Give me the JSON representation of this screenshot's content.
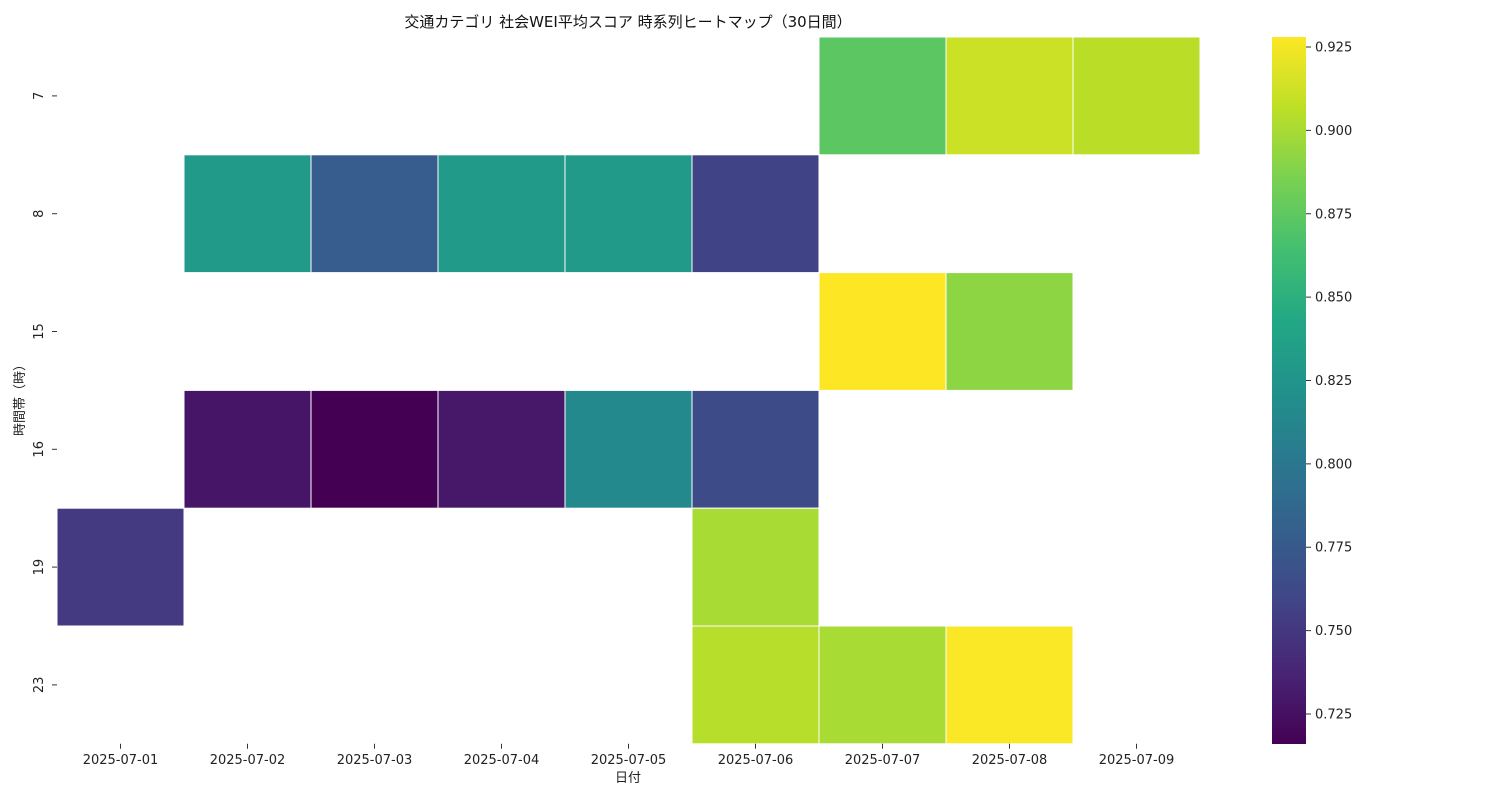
{
  "chart_data": {
    "type": "heatmap",
    "title": "交通カテゴリ 社会WEI平均スコア 時系列ヒートマップ（30日間）",
    "xlabel": "日付",
    "ylabel": "時間帯（時）",
    "x": [
      "2025-07-01",
      "2025-07-02",
      "2025-07-03",
      "2025-07-04",
      "2025-07-05",
      "2025-07-06",
      "2025-07-07",
      "2025-07-08",
      "2025-07-09"
    ],
    "y": [
      "7",
      "8",
      "15",
      "16",
      "19",
      "23"
    ],
    "values": [
      [
        null,
        null,
        null,
        null,
        null,
        null,
        0.874,
        0.911,
        0.906
      ],
      [
        null,
        0.83,
        0.778,
        0.83,
        0.83,
        0.758,
        null,
        null,
        null
      ],
      [
        null,
        null,
        null,
        null,
        null,
        null,
        0.928,
        0.892,
        null
      ],
      [
        null,
        0.728,
        0.716,
        0.73,
        0.815,
        0.765,
        null,
        null,
        null
      ],
      [
        0.752,
        null,
        null,
        null,
        null,
        0.9,
        null,
        null,
        null
      ],
      [
        null,
        null,
        null,
        null,
        null,
        0.905,
        0.9,
        0.927,
        null
      ]
    ],
    "colormap": "viridis",
    "colorbar": {
      "range": [
        0.716,
        0.928
      ],
      "ticks": [
        "0.725",
        "0.750",
        "0.775",
        "0.800",
        "0.825",
        "0.850",
        "0.875",
        "0.900",
        "0.925"
      ]
    }
  }
}
